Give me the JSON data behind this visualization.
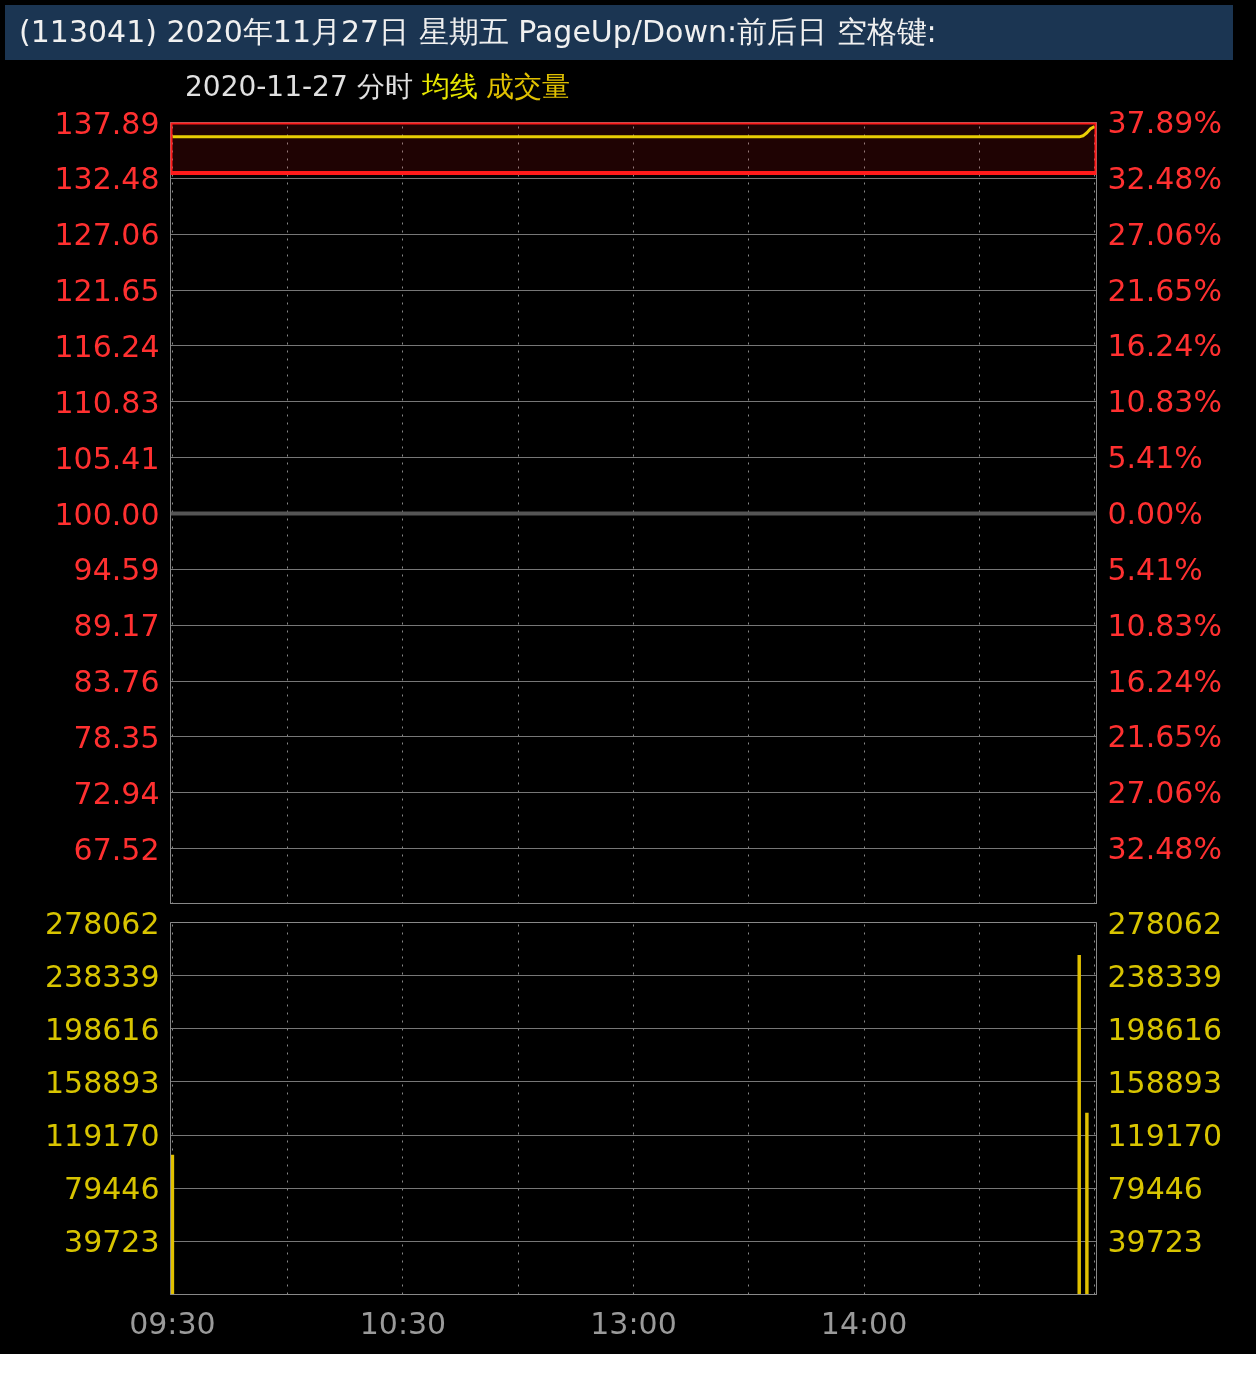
{
  "chart_data": [
    {
      "type": "line",
      "title": "(113041) 2020年11月27日 星期五 PageUp/Down:前后日 空格键:",
      "subtitle": "2020-11-27 分时",
      "categories": [
        null,
        null,
        null,
        null,
        null,
        null,
        null,
        null,
        null,
        null,
        null,
        null,
        null,
        null,
        null,
        null,
        null,
        null,
        null,
        null,
        null,
        null,
        null,
        null,
        null,
        null,
        null,
        null,
        null,
        null,
        null,
        null,
        null,
        null,
        null,
        null,
        null,
        null,
        null,
        null,
        null,
        null,
        null,
        null,
        null,
        null,
        null,
        null,
        null,
        null,
        null,
        null,
        null,
        null,
        null,
        null,
        null,
        null,
        null,
        null,
        null,
        null,
        null,
        null,
        null,
        null,
        null,
        null,
        null,
        null,
        null,
        null,
        null,
        null,
        null,
        null,
        null,
        null,
        null,
        null,
        null,
        null,
        null,
        null,
        null,
        null,
        null,
        null,
        null,
        null,
        null,
        null,
        null,
        null,
        null,
        null,
        null,
        null,
        null,
        null,
        null,
        null,
        null,
        null,
        null,
        null,
        null,
        null,
        null,
        null,
        null,
        null,
        null,
        null,
        null,
        null,
        null,
        null,
        null,
        null,
        null,
        null,
        null,
        null,
        null,
        null,
        null,
        null,
        null,
        null,
        null,
        null,
        null,
        null,
        null,
        null,
        null,
        null,
        null,
        null,
        null,
        null,
        null,
        null,
        null,
        null,
        null,
        null,
        null,
        null,
        null,
        null,
        null,
        null,
        null,
        null,
        null,
        null,
        null,
        null,
        null,
        null,
        null,
        null,
        null,
        null,
        null,
        null,
        null,
        null,
        null,
        null,
        null,
        null,
        null,
        null,
        null,
        null,
        null,
        null,
        null,
        null,
        null,
        null,
        null,
        null,
        null,
        null,
        null,
        null,
        null,
        null,
        null,
        null,
        null,
        null,
        null,
        null,
        null,
        null,
        null,
        null,
        null,
        null,
        null,
        null,
        null,
        null,
        null,
        null,
        null,
        null,
        null,
        null,
        null,
        null,
        null,
        null,
        null,
        null,
        null,
        null,
        null,
        null,
        null,
        null,
        null,
        null,
        null,
        null,
        null,
        null,
        null,
        null,
        null,
        null,
        null,
        null,
        null,
        null,
        null
      ],
      "series": [
        {
          "name": "均线",
          "color": "#e8e800",
          "values": [
            136.5,
            136.5,
            136.5,
            136.5,
            136.5,
            136.5,
            136.5,
            136.5,
            136.5,
            136.5,
            136.5,
            136.5,
            136.5,
            136.5,
            136.5,
            136.5,
            136.5,
            136.5,
            136.5,
            136.5,
            136.5,
            136.5,
            136.5,
            136.5,
            136.5,
            136.5,
            136.5,
            136.5,
            136.5,
            136.5,
            136.5,
            136.5,
            136.5,
            136.5,
            136.5,
            136.5,
            136.5,
            136.5,
            136.5,
            136.5,
            136.5,
            136.5,
            136.5,
            136.5,
            136.5,
            136.5,
            136.5,
            136.5,
            136.5,
            136.5,
            136.5,
            136.5,
            136.5,
            136.5,
            136.5,
            136.5,
            136.5,
            136.5,
            136.5,
            136.5,
            136.5,
            136.5,
            136.5,
            136.5,
            136.5,
            136.5,
            136.5,
            136.5,
            136.5,
            136.5,
            136.5,
            136.5,
            136.5,
            136.5,
            136.5,
            136.5,
            136.5,
            136.5,
            136.5,
            136.5,
            136.5,
            136.5,
            136.5,
            136.5,
            136.5,
            136.5,
            136.5,
            136.5,
            136.5,
            136.5,
            136.5,
            136.5,
            136.5,
            136.5,
            136.5,
            136.5,
            136.5,
            136.5,
            136.5,
            136.5,
            136.5,
            136.5,
            136.5,
            136.5,
            136.5,
            136.5,
            136.5,
            136.5,
            136.5,
            136.5,
            136.5,
            136.5,
            136.5,
            136.5,
            136.5,
            136.5,
            136.5,
            136.5,
            136.5,
            136.5,
            136.5,
            136.5,
            136.5,
            136.5,
            136.5,
            136.5,
            136.5,
            136.5,
            136.5,
            136.5,
            136.5,
            136.5,
            136.5,
            136.5,
            136.5,
            136.5,
            136.5,
            136.5,
            136.5,
            136.5,
            136.5,
            136.5,
            136.5,
            136.5,
            136.5,
            136.5,
            136.5,
            136.5,
            136.5,
            136.5,
            136.5,
            136.5,
            136.5,
            136.5,
            136.5,
            136.5,
            136.5,
            136.5,
            136.5,
            136.5,
            136.5,
            136.5,
            136.5,
            136.5,
            136.5,
            136.5,
            136.5,
            136.5,
            136.5,
            136.5,
            136.5,
            136.5,
            136.5,
            136.5,
            136.5,
            136.5,
            136.5,
            136.5,
            136.5,
            136.5,
            136.5,
            136.5,
            136.5,
            136.5,
            136.5,
            136.5,
            136.5,
            136.5,
            136.5,
            136.5,
            136.5,
            136.5,
            136.5,
            136.5,
            136.5,
            136.5,
            136.5,
            136.5,
            136.5,
            136.5,
            136.5,
            136.5,
            136.5,
            136.5,
            136.5,
            136.5,
            136.5,
            136.5,
            136.5,
            136.5,
            136.5,
            136.5,
            136.5,
            136.5,
            136.5,
            136.5,
            136.5,
            136.5,
            136.5,
            136.5,
            136.5,
            136.5,
            136.5,
            136.5,
            136.5,
            136.5,
            136.5,
            136.5,
            136.5,
            136.5,
            136.5,
            136.5,
            136.5,
            136.5,
            136.5,
            136.5,
            136.5,
            136.6,
            136.9,
            137.3,
            137.5
          ]
        }
      ],
      "ylim": [
        62.11,
        137.89
      ],
      "yticks": [
        137.89,
        132.48,
        127.06,
        121.65,
        116.24,
        110.83,
        105.41,
        {
          "value": 100,
          "label": "100.00"
        },
        94.59,
        89.17,
        83.76,
        78.35,
        72.94,
        67.52
      ],
      "y2lim": [
        -37.89,
        37.89
      ],
      "y2ticks": [
        {
          "value": 37.89,
          "label": "37.89%"
        },
        {
          "value": 32.48,
          "label": "32.48%"
        },
        {
          "value": 27.06,
          "label": "27.06%"
        },
        {
          "value": 21.65,
          "label": "21.65%"
        },
        {
          "value": 16.24,
          "label": "16.24%"
        },
        {
          "value": 10.83,
          "label": "10.83%"
        },
        {
          "value": 5.41,
          "label": "5.41%"
        },
        {
          "value": 0,
          "label": "0.00%"
        },
        {
          "value": -5.41,
          "label": "5.41%"
        },
        {
          "value": -10.83,
          "label": "10.83%"
        },
        {
          "value": -16.24,
          "label": "16.24%"
        },
        {
          "value": -21.65,
          "label": "21.65%"
        },
        {
          "value": -27.06,
          "label": "27.06%"
        },
        {
          "value": -32.48,
          "label": "32.48%"
        }
      ],
      "ref_lines": [
        {
          "axis": "y",
          "value": 100,
          "color": "#555555"
        }
      ],
      "bands": [
        {
          "axis": "y",
          "from": 133.0,
          "to": 137.89,
          "color": "#ff1a1a"
        }
      ],
      "tick_labels": "y",
      "grid": true,
      "legend": "top left"
    },
    {
      "type": "bar",
      "categories": [
        "09:30",
        null,
        null,
        null,
        null,
        null,
        null,
        null,
        null,
        null,
        null,
        null,
        null,
        null,
        null,
        null,
        null,
        null,
        null,
        null,
        null,
        null,
        null,
        null,
        null,
        null,
        null,
        null,
        null,
        null,
        null,
        null,
        null,
        null,
        null,
        null,
        null,
        null,
        null,
        null,
        null,
        null,
        null,
        null,
        null,
        null,
        null,
        null,
        null,
        null,
        null,
        null,
        null,
        null,
        null,
        null,
        null,
        null,
        null,
        null,
        "10:30",
        null,
        null,
        null,
        null,
        null,
        null,
        null,
        null,
        null,
        null,
        null,
        null,
        null,
        null,
        null,
        null,
        null,
        null,
        null,
        null,
        null,
        null,
        null,
        null,
        null,
        null,
        null,
        null,
        null,
        null,
        null,
        null,
        null,
        null,
        null,
        null,
        null,
        null,
        null,
        null,
        null,
        null,
        null,
        null,
        null,
        null,
        null,
        null,
        null,
        null,
        null,
        null,
        null,
        null,
        null,
        null,
        null,
        null,
        null,
        "13:00",
        null,
        null,
        null,
        null,
        null,
        null,
        null,
        null,
        null,
        null,
        null,
        null,
        null,
        null,
        null,
        null,
        null,
        null,
        null,
        null,
        null,
        null,
        null,
        null,
        null,
        null,
        null,
        null,
        null,
        null,
        null,
        null,
        null,
        null,
        null,
        null,
        null,
        null,
        null,
        null,
        null,
        null,
        null,
        null,
        null,
        null,
        null,
        null,
        null,
        null,
        null,
        null,
        null,
        null,
        null,
        null,
        null,
        null,
        null,
        "14:00",
        null,
        null,
        null,
        null,
        null,
        null,
        null,
        null,
        null,
        null,
        null,
        null,
        null,
        null,
        null,
        null,
        null,
        null,
        null,
        null,
        null,
        null,
        null,
        null,
        null,
        null,
        null,
        null,
        null,
        null,
        null,
        null,
        null,
        null,
        null,
        null,
        null,
        null,
        null,
        null,
        null,
        null,
        null,
        null,
        null,
        null,
        null,
        null,
        null,
        null,
        null,
        null,
        null,
        null,
        null,
        null,
        null,
        null,
        null,
        null
      ],
      "series": [
        {
          "name": "成交量",
          "color": "#e0c000",
          "values": [
            104500,
            null,
            null,
            null,
            null,
            null,
            null,
            null,
            null,
            null,
            null,
            null,
            null,
            null,
            null,
            null,
            null,
            null,
            null,
            null,
            null,
            null,
            null,
            null,
            null,
            null,
            null,
            null,
            null,
            null,
            null,
            null,
            null,
            null,
            null,
            null,
            null,
            null,
            null,
            null,
            null,
            null,
            null,
            null,
            null,
            null,
            null,
            null,
            null,
            null,
            null,
            null,
            null,
            null,
            null,
            null,
            null,
            null,
            null,
            null,
            null,
            null,
            null,
            null,
            null,
            null,
            null,
            null,
            null,
            null,
            null,
            null,
            null,
            null,
            null,
            null,
            null,
            null,
            null,
            null,
            null,
            null,
            null,
            null,
            null,
            null,
            null,
            null,
            null,
            null,
            null,
            null,
            null,
            null,
            null,
            null,
            null,
            null,
            null,
            null,
            null,
            null,
            null,
            null,
            null,
            null,
            null,
            null,
            null,
            null,
            null,
            null,
            null,
            null,
            null,
            null,
            null,
            null,
            null,
            null,
            null,
            null,
            null,
            null,
            null,
            null,
            null,
            null,
            null,
            null,
            null,
            null,
            null,
            null,
            null,
            null,
            null,
            null,
            null,
            null,
            null,
            null,
            null,
            null,
            null,
            null,
            null,
            null,
            null,
            null,
            null,
            null,
            null,
            null,
            null,
            null,
            null,
            null,
            null,
            null,
            null,
            null,
            null,
            null,
            null,
            null,
            null,
            null,
            null,
            null,
            null,
            null,
            null,
            null,
            null,
            null,
            null,
            null,
            null,
            null,
            null,
            null,
            null,
            null,
            null,
            null,
            null,
            null,
            null,
            null,
            null,
            null,
            null,
            null,
            null,
            null,
            null,
            null,
            null,
            null,
            null,
            null,
            null,
            null,
            null,
            null,
            null,
            null,
            null,
            null,
            null,
            null,
            null,
            null,
            null,
            null,
            null,
            null,
            null,
            null,
            null,
            null,
            null,
            null,
            null,
            null,
            null,
            null,
            null,
            null,
            null,
            null,
            null,
            null,
            null,
            null,
            253700,
            null,
            135900,
            null,
            null
          ]
        }
      ],
      "ylim": [
        0,
        278062
      ],
      "yticks": [
        39723,
        79446,
        119170,
        158893,
        198616,
        238339,
        278062
      ],
      "y2lim": [
        0,
        278062
      ],
      "y2ticks": [
        39723,
        79446,
        119170,
        158893,
        198616,
        238339,
        278062
      ],
      "grid": true,
      "legend": "top left"
    }
  ]
}
